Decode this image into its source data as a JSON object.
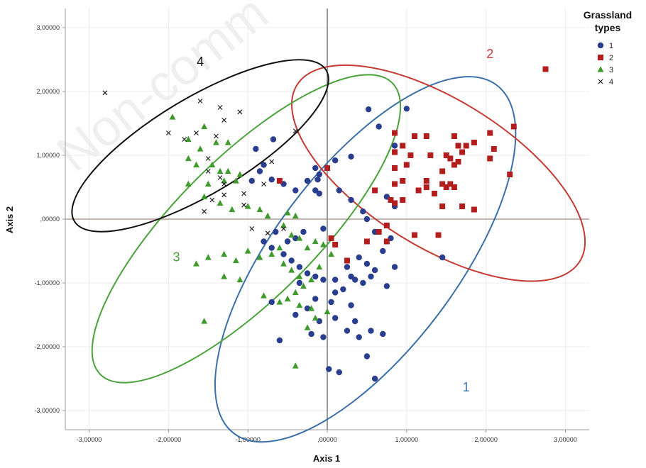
{
  "chart_data": {
    "type": "scatter",
    "xlabel": "Axis 1",
    "ylabel": "Axis 2",
    "xlim": [
      -3.3,
      3.3
    ],
    "ylim": [
      -3.3,
      3.3
    ],
    "xticks": [
      -3,
      -2,
      -1,
      0,
      1,
      2,
      3
    ],
    "yticks": [
      -3,
      -2,
      -1,
      0,
      1,
      2,
      3
    ],
    "xtick_labels": [
      "-3,00000",
      "-2,00000",
      "-1,00000",
      ",00000",
      "1,00000",
      "2,00000",
      "3,00000"
    ],
    "ytick_labels": [
      "-3,00000",
      "-2,00000",
      "-1,00000",
      ",00000",
      "1,00000",
      "2,00000",
      "3,00000"
    ],
    "reference_lines": {
      "x": 0,
      "y": 0,
      "color": "#a08a80"
    },
    "grid": true,
    "legend": {
      "title_line1": "Grassland",
      "title_line2": "types",
      "position": "top-right"
    },
    "watermark": "Non-comm",
    "series": [
      {
        "name": "1",
        "marker": "circle",
        "color": "#2a3e8f",
        "points": [
          [
            0.52,
            1.72
          ],
          [
            1.0,
            1.73
          ],
          [
            0.65,
            1.45
          ],
          [
            0.85,
            1.15
          ],
          [
            -0.68,
            1.25
          ],
          [
            -0.9,
            1.1
          ],
          [
            -0.8,
            0.85
          ],
          [
            -0.85,
            0.75
          ],
          [
            -0.95,
            0.6
          ],
          [
            -0.7,
            0.62
          ],
          [
            -0.55,
            0.55
          ],
          [
            -0.4,
            0.45
          ],
          [
            -0.25,
            0.6
          ],
          [
            -0.1,
            0.7
          ],
          [
            0.1,
            0.92
          ],
          [
            -0.15,
            0.8
          ],
          [
            -0.12,
            0.62
          ],
          [
            -0.15,
            0.45
          ],
          [
            -0.1,
            0.4
          ],
          [
            0.3,
            0.98
          ],
          [
            0.15,
            0.45
          ],
          [
            0.3,
            0.3
          ],
          [
            0.45,
            0.12
          ],
          [
            0.75,
            0.35
          ],
          [
            0.85,
            0.2
          ],
          [
            0.5,
            0.0
          ],
          [
            0.6,
            -0.2
          ],
          [
            0.8,
            -0.3
          ],
          [
            0.7,
            -0.5
          ],
          [
            0.4,
            -0.6
          ],
          [
            0.5,
            -0.7
          ],
          [
            0.6,
            -0.8
          ],
          [
            0.25,
            -0.75
          ],
          [
            0.3,
            -0.9
          ],
          [
            0.1,
            -0.95
          ],
          [
            0.35,
            -0.95
          ],
          [
            0.55,
            -0.9
          ],
          [
            0.75,
            -1.05
          ],
          [
            0.85,
            -0.75
          ],
          [
            1.45,
            -0.6
          ],
          [
            0.45,
            -1.0
          ],
          [
            -0.3,
            -0.2
          ],
          [
            -0.4,
            -0.3
          ],
          [
            -0.5,
            -0.35
          ],
          [
            -0.65,
            -0.2
          ],
          [
            -0.7,
            -0.45
          ],
          [
            -0.8,
            -0.35
          ],
          [
            -0.55,
            -0.55
          ],
          [
            -0.45,
            -0.65
          ],
          [
            -0.35,
            -0.75
          ],
          [
            -0.25,
            -0.85
          ],
          [
            -0.15,
            -0.9
          ],
          [
            -0.05,
            -0.95
          ],
          [
            0.1,
            -1.15
          ],
          [
            0.2,
            -1.1
          ],
          [
            0.3,
            -1.35
          ],
          [
            0.05,
            -1.3
          ],
          [
            -0.15,
            -1.25
          ],
          [
            -0.25,
            -1.4
          ],
          [
            -0.4,
            -1.5
          ],
          [
            -0.1,
            -1.6
          ],
          [
            0.1,
            -1.55
          ],
          [
            0.35,
            -1.6
          ],
          [
            0.25,
            -1.75
          ],
          [
            0.4,
            -1.85
          ],
          [
            0.55,
            -1.75
          ],
          [
            0.7,
            -1.8
          ],
          [
            -0.2,
            -1.8
          ],
          [
            -0.05,
            -1.85
          ],
          [
            -0.6,
            -1.9
          ],
          [
            0.5,
            -2.15
          ],
          [
            0.02,
            -2.35
          ],
          [
            0.15,
            -2.4
          ],
          [
            0.6,
            -2.5
          ],
          [
            -0.7,
            -1.3
          ],
          [
            -0.35,
            -1.0
          ],
          [
            -0.05,
            -0.15
          ]
        ]
      },
      {
        "name": "2",
        "marker": "square",
        "color": "#b21d1d",
        "points": [
          [
            2.75,
            2.35
          ],
          [
            2.35,
            1.45
          ],
          [
            2.05,
            1.35
          ],
          [
            1.85,
            1.2
          ],
          [
            1.6,
            1.3
          ],
          [
            1.65,
            1.15
          ],
          [
            1.75,
            1.15
          ],
          [
            1.7,
            1.05
          ],
          [
            1.55,
            0.95
          ],
          [
            1.5,
            1.0
          ],
          [
            1.6,
            0.85
          ],
          [
            1.65,
            0.9
          ],
          [
            1.45,
            0.75
          ],
          [
            1.25,
            1.3
          ],
          [
            1.1,
            1.3
          ],
          [
            0.85,
            1.35
          ],
          [
            0.95,
            1.15
          ],
          [
            0.85,
            1.05
          ],
          [
            1.05,
            1.0
          ],
          [
            1.3,
            1.0
          ],
          [
            0.85,
            0.8
          ],
          [
            1.0,
            0.85
          ],
          [
            0.95,
            0.6
          ],
          [
            0.85,
            0.55
          ],
          [
            1.15,
            0.45
          ],
          [
            1.25,
            0.5
          ],
          [
            1.25,
            0.6
          ],
          [
            1.45,
            0.55
          ],
          [
            1.5,
            0.5
          ],
          [
            1.55,
            0.55
          ],
          [
            1.6,
            0.5
          ],
          [
            1.35,
            0.4
          ],
          [
            1.45,
            0.2
          ],
          [
            1.7,
            0.2
          ],
          [
            1.85,
            0.15
          ],
          [
            2.05,
            0.95
          ],
          [
            2.1,
            1.1
          ],
          [
            2.3,
            0.7
          ],
          [
            0.8,
            0.3
          ],
          [
            0.85,
            0.25
          ],
          [
            0.95,
            0.3
          ],
          [
            0.6,
            0.45
          ],
          [
            0.75,
            -0.1
          ],
          [
            0.65,
            -0.2
          ],
          [
            0.5,
            -0.35
          ],
          [
            0.75,
            -0.35
          ],
          [
            1.1,
            -0.25
          ],
          [
            1.4,
            -0.25
          ],
          [
            0.05,
            -0.3
          ],
          [
            0.1,
            -0.4
          ],
          [
            0.25,
            -0.65
          ],
          [
            -0.6,
            0.6
          ],
          [
            0.0,
            0.8
          ]
        ]
      },
      {
        "name": "3",
        "marker": "triangle",
        "color": "#3e9a2a",
        "points": [
          [
            -1.95,
            1.6
          ],
          [
            -1.75,
            1.25
          ],
          [
            -1.55,
            1.45
          ],
          [
            -1.4,
            1.2
          ],
          [
            -1.25,
            1.2
          ],
          [
            -1.6,
            1.1
          ],
          [
            -1.75,
            0.95
          ],
          [
            -1.65,
            0.85
          ],
          [
            -1.45,
            0.85
          ],
          [
            -1.35,
            0.75
          ],
          [
            -1.25,
            0.75
          ],
          [
            -1.1,
            0.7
          ],
          [
            -1.15,
            0.6
          ],
          [
            -1.3,
            0.6
          ],
          [
            -1.5,
            0.55
          ],
          [
            -1.75,
            0.55
          ],
          [
            -1.55,
            0.35
          ],
          [
            -1.35,
            0.25
          ],
          [
            -1.2,
            0.15
          ],
          [
            -1.0,
            0.2
          ],
          [
            -0.85,
            0.15
          ],
          [
            -0.75,
            0.05
          ],
          [
            -0.5,
            0.1
          ],
          [
            -0.4,
            0.05
          ],
          [
            -0.55,
            -0.1
          ],
          [
            -0.45,
            -0.25
          ],
          [
            -0.35,
            -0.3
          ],
          [
            -0.25,
            -0.45
          ],
          [
            -0.15,
            -0.35
          ],
          [
            -0.05,
            -0.4
          ],
          [
            -0.6,
            -0.45
          ],
          [
            -0.7,
            -0.55
          ],
          [
            -0.85,
            -0.6
          ],
          [
            -1.0,
            -0.5
          ],
          [
            -1.15,
            -0.65
          ],
          [
            -1.3,
            -0.55
          ],
          [
            -1.5,
            -0.6
          ],
          [
            -1.65,
            -0.7
          ],
          [
            -0.55,
            -0.7
          ],
          [
            -0.45,
            -0.8
          ],
          [
            -0.35,
            -0.9
          ],
          [
            -0.2,
            -0.95
          ],
          [
            -0.3,
            -1.05
          ],
          [
            -0.4,
            -1.15
          ],
          [
            -0.5,
            -1.25
          ],
          [
            -0.6,
            -1.3
          ],
          [
            -0.35,
            -1.35
          ],
          [
            -0.2,
            -1.4
          ],
          [
            0.0,
            -1.45
          ],
          [
            -0.15,
            -1.55
          ],
          [
            -1.1,
            -0.95
          ],
          [
            -1.3,
            -0.9
          ],
          [
            -0.8,
            -1.2
          ],
          [
            -1.55,
            -1.6
          ],
          [
            -0.4,
            -2.3
          ],
          [
            -0.25,
            -1.7
          ],
          [
            0.05,
            -0.55
          ],
          [
            -0.1,
            -0.75
          ]
        ]
      },
      {
        "name": "4",
        "marker": "x",
        "color": "#1a1a1a",
        "points": [
          [
            -2.8,
            1.98
          ],
          [
            -1.6,
            1.85
          ],
          [
            -1.35,
            1.75
          ],
          [
            -1.1,
            1.68
          ],
          [
            -1.3,
            1.55
          ],
          [
            -1.65,
            1.35
          ],
          [
            -1.4,
            1.3
          ],
          [
            -1.8,
            1.25
          ],
          [
            -2.0,
            1.35
          ],
          [
            -0.4,
            1.38
          ],
          [
            -1.5,
            0.95
          ],
          [
            -0.7,
            0.9
          ],
          [
            -1.5,
            0.75
          ],
          [
            -1.35,
            0.65
          ],
          [
            -1.3,
            0.55
          ],
          [
            -1.05,
            0.4
          ],
          [
            -1.3,
            0.38
          ],
          [
            -1.05,
            0.22
          ],
          [
            -1.45,
            0.3
          ],
          [
            -1.55,
            0.12
          ],
          [
            -0.95,
            -0.15
          ],
          [
            -0.75,
            -0.22
          ],
          [
            -0.55,
            -0.15
          ],
          [
            -0.8,
            0.55
          ]
        ]
      }
    ],
    "ellipses": [
      {
        "label": "1",
        "color": "#3b6fa8",
        "cx": 0.48,
        "cy": -0.63,
        "rx": 2.75,
        "ry": 1.43,
        "angle": -53,
        "label_x": 1.75,
        "label_y": -2.7
      },
      {
        "label": "2",
        "color": "#c63a34",
        "cx": 1.4,
        "cy": 0.72,
        "rx": 2.1,
        "ry": 1.15,
        "angle": 32,
        "label_x": 2.05,
        "label_y": 2.52
      },
      {
        "label": "3",
        "color": "#4aa23a",
        "cx": -1.02,
        "cy": -0.15,
        "rx": 2.6,
        "ry": 1.1,
        "angle": -45,
        "label_x": -1.9,
        "label_y": -0.66
      },
      {
        "label": "4",
        "color": "#111111",
        "cx": -1.6,
        "cy": 1.15,
        "rx": 1.85,
        "ry": 0.75,
        "angle": -31,
        "label_x": -1.6,
        "label_y": 2.4
      }
    ]
  }
}
